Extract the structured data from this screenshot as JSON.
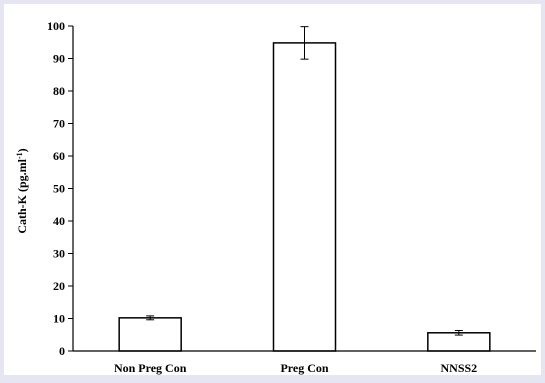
{
  "chart_data": {
    "type": "bar",
    "categories": [
      "Non Preg Con",
      "Preg Con",
      "NNSS2"
    ],
    "values": [
      10.2,
      94.8,
      5.6
    ],
    "errors": [
      0.6,
      5.0,
      0.7
    ],
    "ylim": [
      0,
      100
    ],
    "yticks": [
      0,
      10,
      20,
      30,
      40,
      50,
      60,
      70,
      80,
      90,
      100
    ],
    "ylabel_main": "Cath-K (pg.ml",
    "ylabel_sup": "-1",
    "ylabel_end": ")",
    "xlabel": "",
    "title": "",
    "grid": false,
    "bar_fill": "#ffffff",
    "bar_stroke": "#000000"
  }
}
